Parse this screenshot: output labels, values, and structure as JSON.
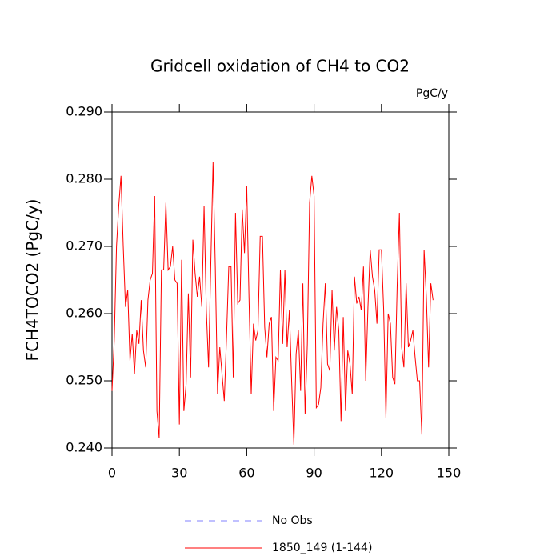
{
  "chart_data": {
    "type": "line",
    "title": "Gridcell oxidation of CH4 to CO2",
    "units_label": "PgC/y",
    "y_label": "FCH4TOCO2  (PgC/y)",
    "xlim": [
      0,
      150
    ],
    "xticks": [
      0,
      30,
      60,
      90,
      120,
      150
    ],
    "ylim": [
      0.24,
      0.29
    ],
    "yticks": [
      {
        "value": 0.24,
        "label": "0.240"
      },
      {
        "value": 0.25,
        "label": "0.250"
      },
      {
        "value": 0.26,
        "label": "0.260"
      },
      {
        "value": 0.27,
        "label": "0.270"
      },
      {
        "value": 0.28,
        "label": "0.280"
      },
      {
        "value": 0.29,
        "label": "0.290"
      }
    ],
    "grid": false,
    "extra_legend": [
      {
        "name": "No Obs",
        "color": "#8080ff",
        "dash": true
      }
    ],
    "x": [
      0,
      1,
      2,
      3,
      4,
      5,
      6,
      7,
      8,
      9,
      10,
      11,
      12,
      13,
      14,
      15,
      16,
      17,
      18,
      19,
      20,
      21,
      22,
      23,
      24,
      25,
      26,
      27,
      28,
      29,
      30,
      31,
      32,
      33,
      34,
      35,
      36,
      37,
      38,
      39,
      40,
      41,
      42,
      43,
      44,
      45,
      46,
      47,
      48,
      49,
      50,
      51,
      52,
      53,
      54,
      55,
      56,
      57,
      58,
      59,
      60,
      61,
      62,
      63,
      64,
      65,
      66,
      67,
      68,
      69,
      70,
      71,
      72,
      73,
      74,
      75,
      76,
      77,
      78,
      79,
      80,
      81,
      82,
      83,
      84,
      85,
      86,
      87,
      88,
      89,
      90,
      91,
      92,
      93,
      94,
      95,
      96,
      97,
      98,
      99,
      100,
      101,
      102,
      103,
      104,
      105,
      106,
      107,
      108,
      109,
      110,
      111,
      112,
      113,
      114,
      115,
      116,
      117,
      118,
      119,
      120,
      121,
      122,
      123,
      124,
      125,
      126,
      127,
      128,
      129,
      130,
      131,
      132,
      133,
      134,
      135,
      136,
      137,
      138,
      139,
      140,
      141,
      142,
      143
    ],
    "series": [
      {
        "name": "1850_149 (1-144)",
        "color": "#ff0000",
        "values": [
          0.2485,
          0.256,
          0.27,
          0.276,
          0.2805,
          0.27,
          0.261,
          0.2635,
          0.253,
          0.257,
          0.251,
          0.2575,
          0.2555,
          0.262,
          0.2545,
          0.252,
          0.262,
          0.265,
          0.266,
          0.2775,
          0.2455,
          0.2415,
          0.2665,
          0.2665,
          0.2765,
          0.2665,
          0.267,
          0.27,
          0.265,
          0.2645,
          0.2435,
          0.268,
          0.2455,
          0.2495,
          0.263,
          0.2505,
          0.271,
          0.266,
          0.2625,
          0.2655,
          0.261,
          0.276,
          0.2605,
          0.252,
          0.2675,
          0.2825,
          0.267,
          0.248,
          0.255,
          0.251,
          0.247,
          0.2565,
          0.267,
          0.267,
          0.2505,
          0.275,
          0.2615,
          0.262,
          0.2755,
          0.269,
          0.279,
          0.2625,
          0.248,
          0.2585,
          0.256,
          0.2575,
          0.2715,
          0.2715,
          0.258,
          0.2535,
          0.2585,
          0.2595,
          0.2455,
          0.2535,
          0.253,
          0.2665,
          0.2555,
          0.2665,
          0.255,
          0.2605,
          0.25,
          0.2405,
          0.254,
          0.2575,
          0.2485,
          0.2645,
          0.245,
          0.2555,
          0.2765,
          0.2805,
          0.2775,
          0.246,
          0.2465,
          0.249,
          0.2585,
          0.2645,
          0.2525,
          0.2515,
          0.2635,
          0.2545,
          0.261,
          0.2575,
          0.244,
          0.2595,
          0.2455,
          0.2545,
          0.2525,
          0.248,
          0.2655,
          0.2615,
          0.2625,
          0.2605,
          0.267,
          0.25,
          0.261,
          0.2695,
          0.2655,
          0.2635,
          0.2585,
          0.2695,
          0.2695,
          0.2605,
          0.2445,
          0.26,
          0.2585,
          0.2505,
          0.2495,
          0.264,
          0.275,
          0.255,
          0.252,
          0.2645,
          0.255,
          0.256,
          0.2575,
          0.2535,
          0.25,
          0.25,
          0.242,
          0.2695,
          0.2625,
          0.252,
          0.2645,
          0.262
        ]
      }
    ]
  }
}
